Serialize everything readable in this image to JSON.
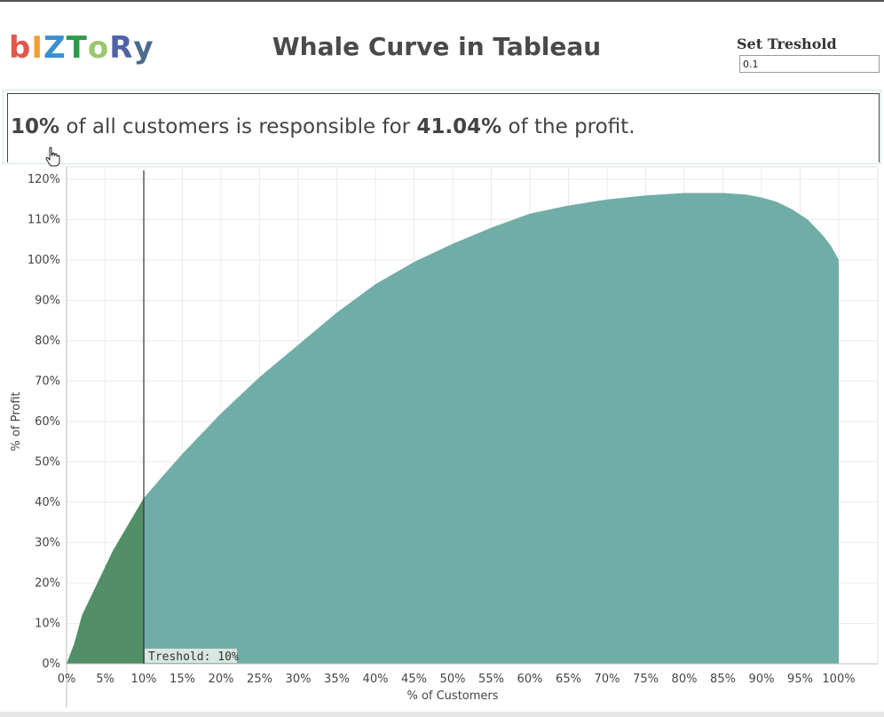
{
  "logo": {
    "letters": [
      "b",
      "I",
      "Z",
      "T",
      "o",
      "R",
      "y"
    ],
    "colors": [
      "#e2574c",
      "#f0a030",
      "#3a8fcf",
      "#2f9a4a",
      "#9ac86d",
      "#4f63a6",
      "#4b6b8e"
    ]
  },
  "header": {
    "title": "Whale Curve in Tableau"
  },
  "parameter": {
    "label": "Set Treshold",
    "value": "0.1"
  },
  "summary": {
    "pct_customers": "10%",
    "text_middle": " of all customers is responsible for ",
    "pct_profit": "41.04%",
    "text_end": " of the profit."
  },
  "colors": {
    "area_main": "#70ada6",
    "area_threshold": "#528f66",
    "threshold_line": "#333333",
    "grid": "#ebebeb"
  },
  "chart_data": {
    "type": "area",
    "xlabel": "% of Customers",
    "ylabel": "% of Profit",
    "x_ticks": [
      "0%",
      "5%",
      "10%",
      "15%",
      "20%",
      "25%",
      "30%",
      "35%",
      "40%",
      "45%",
      "50%",
      "55%",
      "60%",
      "65%",
      "70%",
      "75%",
      "80%",
      "85%",
      "90%",
      "95%",
      "100%"
    ],
    "y_ticks": [
      "0%",
      "10%",
      "20%",
      "30%",
      "40%",
      "50%",
      "60%",
      "70%",
      "80%",
      "90%",
      "100%",
      "110%",
      "120%"
    ],
    "xlim": [
      0,
      100
    ],
    "ylim": [
      0,
      120
    ],
    "threshold": 10,
    "threshold_label": "Treshold: 10%",
    "grid": true,
    "series": [
      {
        "x": [
          0,
          1,
          2,
          3,
          4,
          5,
          6,
          8,
          10,
          12,
          15,
          20,
          25,
          30,
          35,
          40,
          45,
          50,
          55,
          60,
          65,
          70,
          75,
          80,
          85,
          88,
          90,
          92,
          94,
          96,
          98,
          99,
          100
        ],
        "y": [
          0,
          5,
          12,
          16,
          20,
          24,
          28,
          34.5,
          41.04,
          45.5,
          52,
          62,
          71,
          79,
          87,
          94,
          99.5,
          104,
          108,
          111.5,
          113.5,
          115,
          116,
          116.6,
          116.6,
          116.2,
          115.5,
          114.4,
          112.5,
          110,
          106,
          103.5,
          100
        ]
      }
    ]
  }
}
